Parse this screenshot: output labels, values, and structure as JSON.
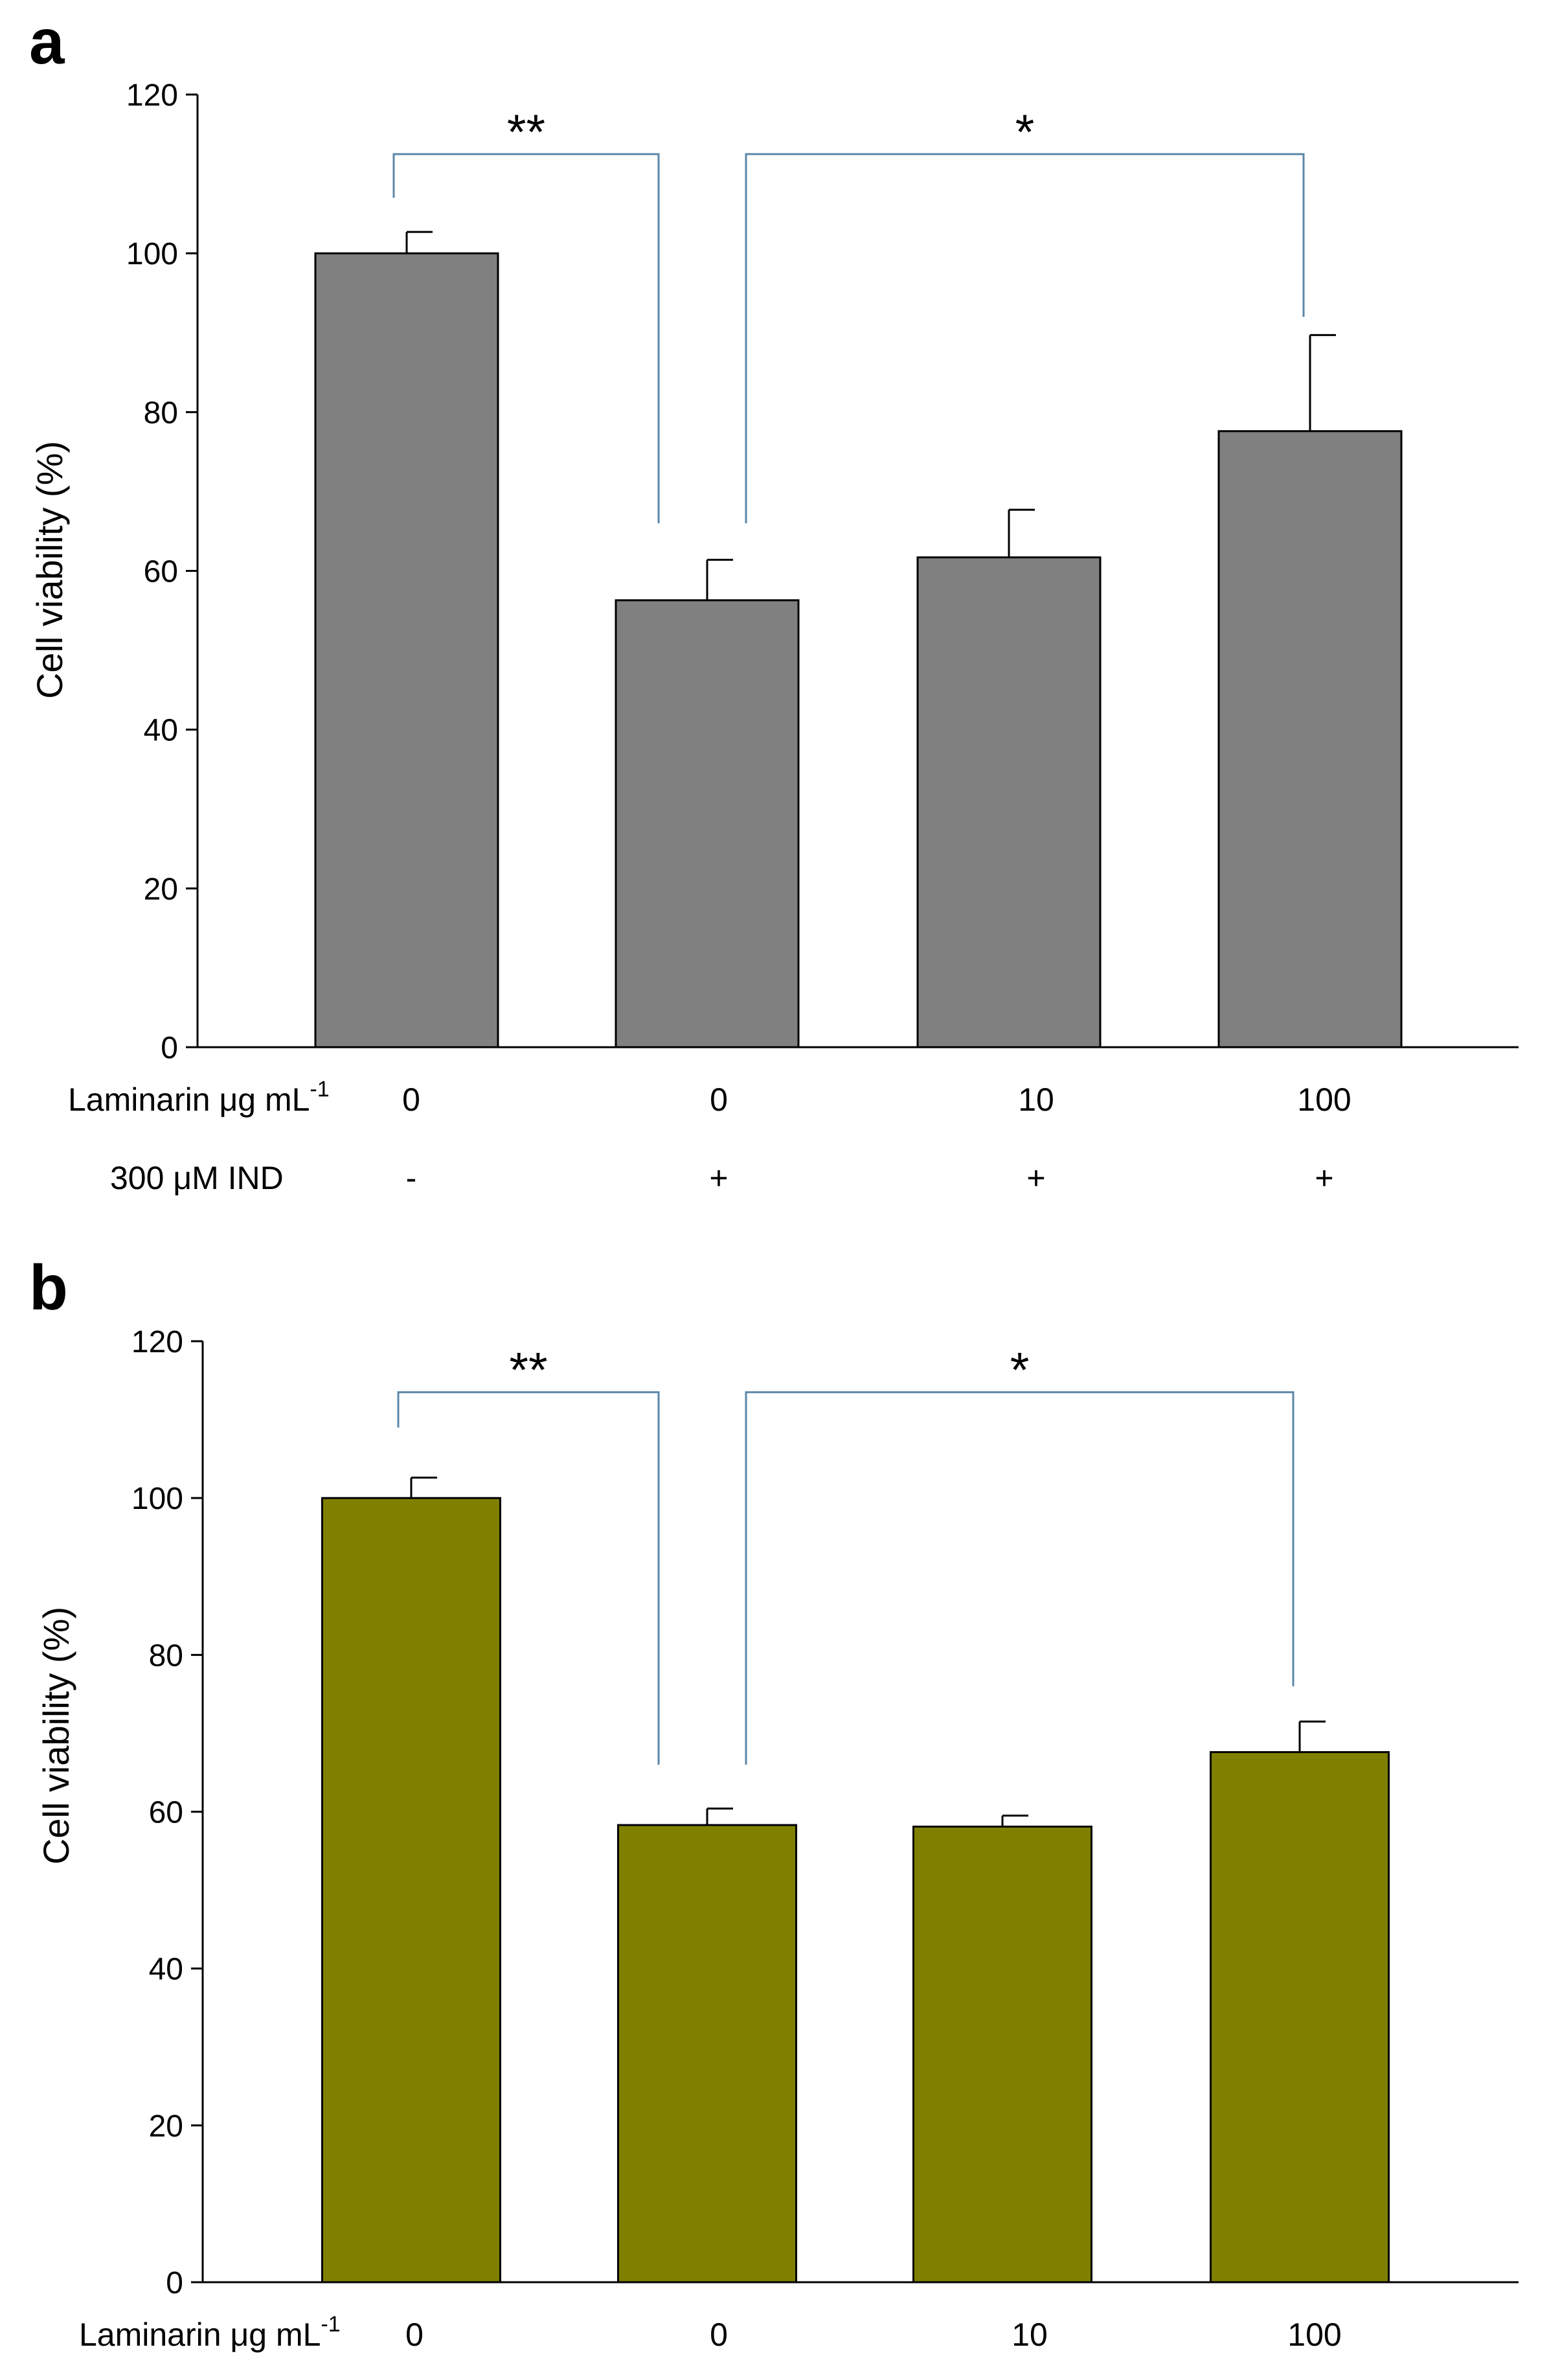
{
  "chart_data": [
    {
      "panel": "a",
      "type": "bar",
      "ylabel": "Cell viability (%)",
      "ylim": [
        0,
        120
      ],
      "yticks": [
        "0",
        "20",
        "40",
        "60",
        "80",
        "100",
        "120"
      ],
      "bar_color": "#808080",
      "bracket_color": "#5b87a8",
      "categories": [
        "0",
        "0",
        "10",
        "100"
      ],
      "values": [
        100,
        56.3,
        61.7,
        77.6
      ],
      "errors": [
        2.7,
        5.1,
        6.0,
        12.1
      ],
      "rows": [
        {
          "label": "Laminarin μg mL",
          "label_sup": "-1",
          "values": [
            "0",
            "0",
            "10",
            "100"
          ]
        },
        {
          "label": "300 μM IND",
          "label_sup": "",
          "values": [
            "-",
            "+",
            "+",
            "+"
          ]
        }
      ],
      "significance": [
        {
          "from": 0,
          "to": 1,
          "label": "**",
          "y": 112.5,
          "left_end": 107.0,
          "right_end": 66.0
        },
        {
          "from": 1,
          "to": 3,
          "label": "*",
          "y": 112.5,
          "left_end": 66.0,
          "right_end": 92.0
        }
      ]
    },
    {
      "panel": "b",
      "type": "bar",
      "ylabel": "Cell viability (%)",
      "ylim": [
        0,
        120
      ],
      "yticks": [
        "0",
        "20",
        "40",
        "60",
        "80",
        "100",
        "120"
      ],
      "bar_color": "#808000",
      "bracket_color": "#5b87a8",
      "categories": [
        "0",
        "0",
        "10",
        "100"
      ],
      "values": [
        100,
        58.3,
        58.1,
        67.6
      ],
      "errors": [
        2.6,
        2.1,
        1.4,
        3.9
      ],
      "rows": [
        {
          "label": "Laminarin μg mL",
          "label_sup": "-1",
          "values": [
            "0",
            "0",
            "10",
            "100"
          ]
        }
      ],
      "significance": [
        {
          "from": 0,
          "to": 1,
          "label": "**",
          "y": 113.5,
          "left_end": 109.0,
          "right_end": 66.0
        },
        {
          "from": 1,
          "to": 3,
          "label": "*",
          "y": 113.5,
          "left_end": 66.0,
          "right_end": 76.0
        }
      ]
    }
  ]
}
